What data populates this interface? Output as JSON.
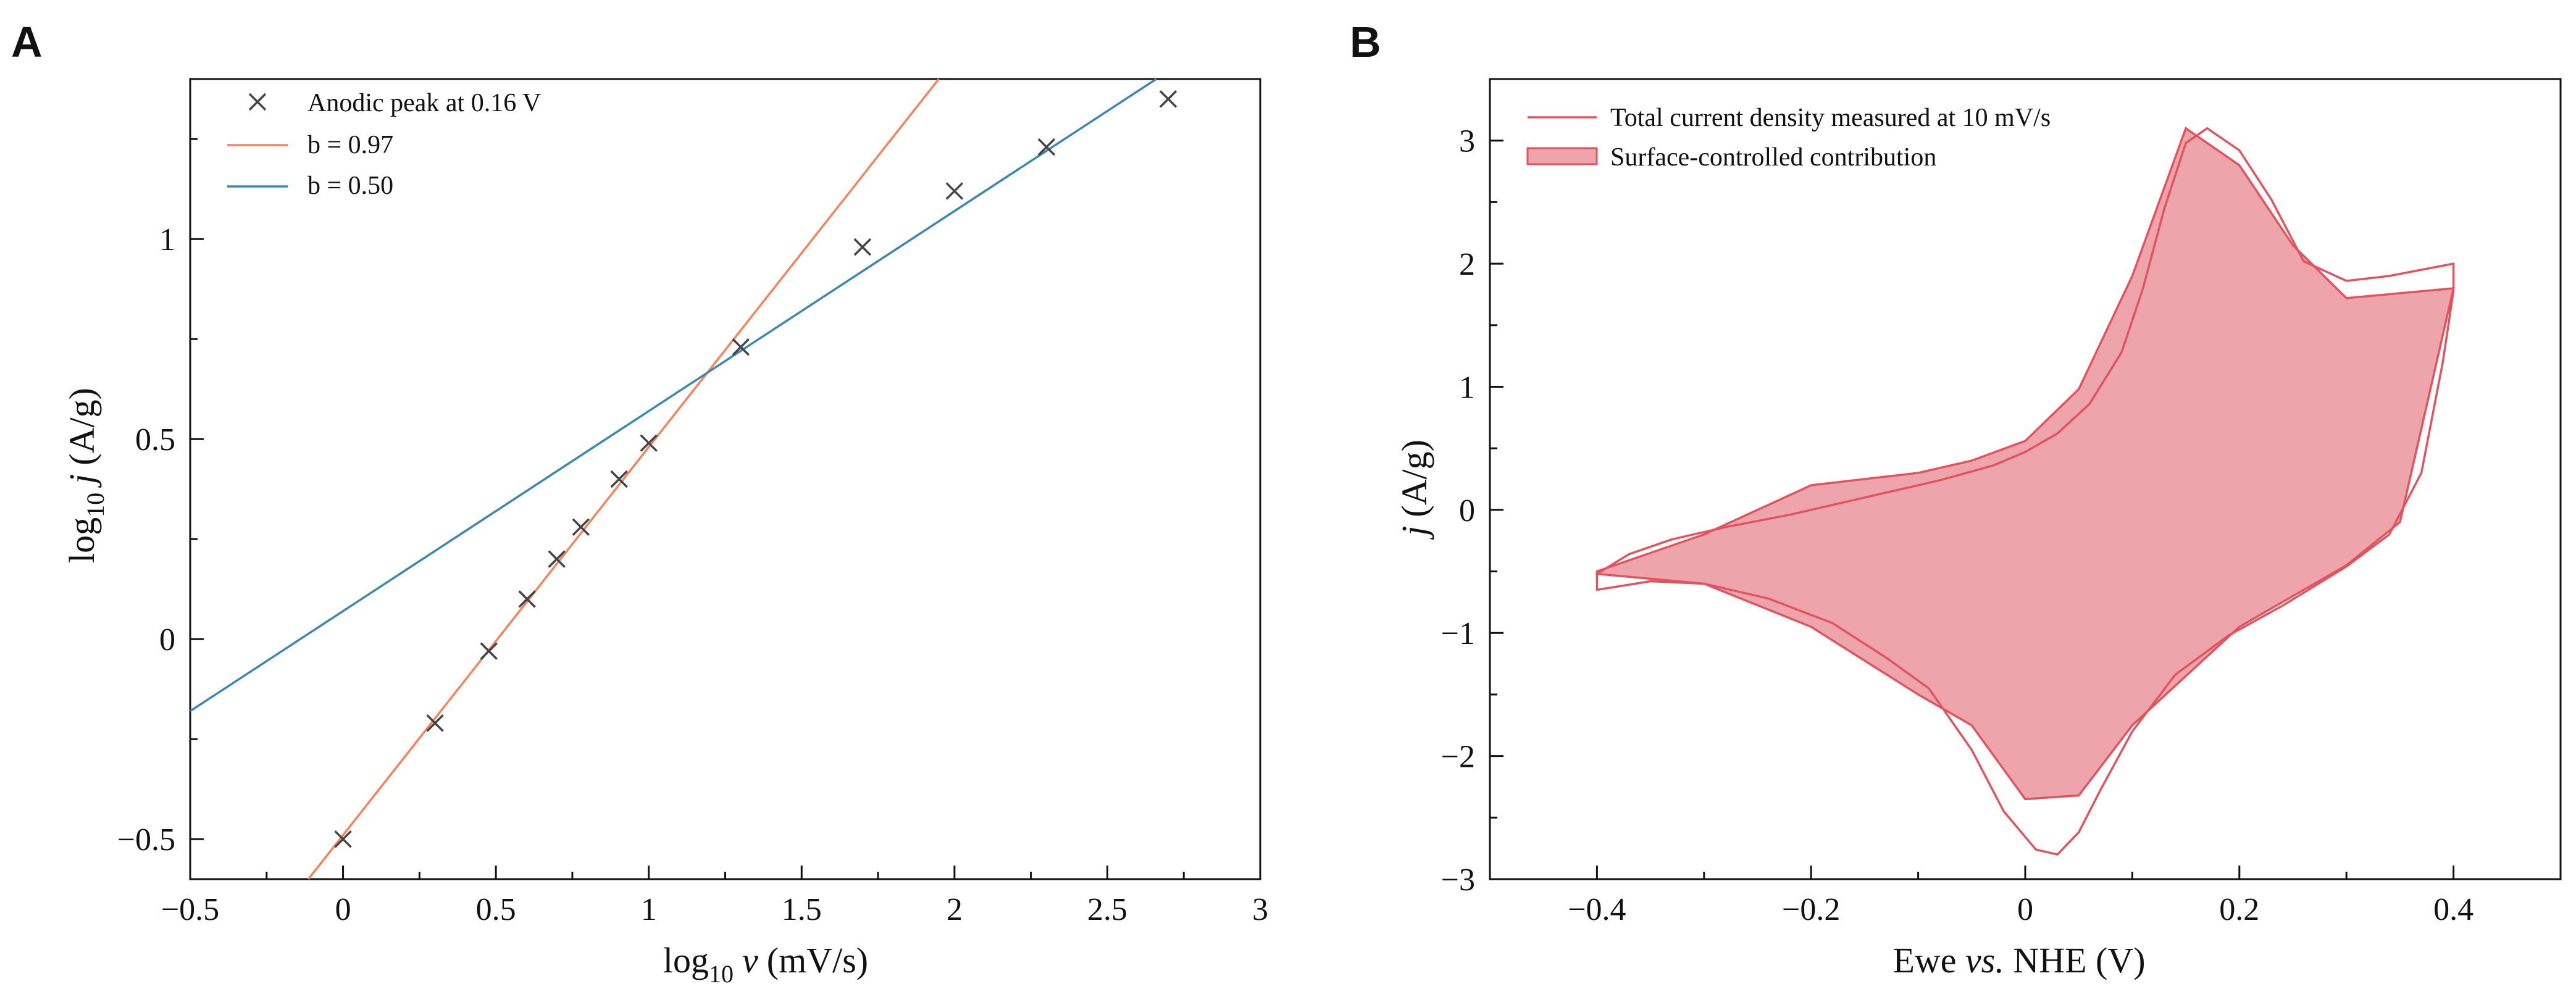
{
  "colors": {
    "fit_b097": "#f4855a",
    "fit_b050": "#3a87b3",
    "marker": "#444444",
    "cv_line": "#e0535f",
    "cv_fill": "#eda4ab",
    "axis": "#111111"
  },
  "chart_data": [
    {
      "panel": "A",
      "type": "scatter",
      "xlabel": {
        "prefix": "log",
        "sub": "10",
        "var": "v",
        "unit": "(mV/s)"
      },
      "ylabel": {
        "prefix": "log",
        "sub": "10",
        "var": "j",
        "unit": "(A/g)"
      },
      "xlim": [
        -0.5,
        3.0
      ],
      "ylim": [
        -0.6,
        1.4
      ],
      "xticks": [
        -0.5,
        0,
        0.5,
        1,
        1.5,
        2,
        2.5,
        3
      ],
      "xtick_labels": [
        "−0.5",
        "0",
        "0.5",
        "1",
        "1.5",
        "2",
        "2.5",
        "3"
      ],
      "yticks": [
        -0.5,
        0,
        0.5,
        1
      ],
      "ytick_labels": [
        "−0.5",
        "0",
        "0.5",
        "1"
      ],
      "xminor_step": 0.25,
      "yminor_step": 0.25,
      "grid": false,
      "legend_position": "top-left",
      "series": [
        {
          "name": "Anodic peak at 0.16 V",
          "kind": "marker-x",
          "points": [
            [
              0.0,
              -0.5
            ],
            [
              0.301,
              -0.21
            ],
            [
              0.477,
              -0.03
            ],
            [
              0.602,
              0.1
            ],
            [
              0.699,
              0.2
            ],
            [
              0.778,
              0.28
            ],
            [
              0.903,
              0.4
            ],
            [
              1.0,
              0.49
            ],
            [
              1.301,
              0.73
            ],
            [
              1.699,
              0.98
            ],
            [
              2.0,
              1.12
            ],
            [
              2.301,
              1.23
            ],
            [
              2.699,
              1.35
            ]
          ]
        },
        {
          "name": "b = 0.97",
          "kind": "line",
          "slope": 0.97,
          "intercept": -0.49,
          "x_range": [
            -0.5,
            3.0
          ]
        },
        {
          "name": "b = 0.50",
          "kind": "line",
          "slope": 0.5,
          "intercept": 0.07,
          "x_range": [
            -0.5,
            3.0
          ]
        }
      ]
    },
    {
      "panel": "B",
      "type": "area",
      "xlabel": {
        "pre": "Ewe ",
        "italic": "vs.",
        "post": " NHE (V)"
      },
      "ylabel": {
        "var": "j",
        "unit": "(A/g)"
      },
      "xlim": [
        -0.5,
        0.5
      ],
      "ylim": [
        -3,
        3.5
      ],
      "xticks": [
        -0.4,
        -0.2,
        0,
        0.2,
        0.4
      ],
      "xtick_labels": [
        "−0.4",
        "−0.2",
        "0",
        "0.2",
        "0.4"
      ],
      "yticks": [
        -3,
        -2,
        -1,
        0,
        1,
        2,
        3
      ],
      "ytick_labels": [
        "−3",
        "−2",
        "−1",
        "0",
        "1",
        "2",
        "3"
      ],
      "xminor_step": 0.1,
      "yminor_step": 0.5,
      "grid": false,
      "legend_position": "top-left",
      "series": [
        {
          "name": "Total current density measured at 10 mV/s",
          "kind": "line",
          "points": [
            [
              -0.4,
              -0.52
            ],
            [
              -0.37,
              -0.36
            ],
            [
              -0.33,
              -0.24
            ],
            [
              -0.28,
              -0.14
            ],
            [
              -0.22,
              -0.04
            ],
            [
              -0.15,
              0.1
            ],
            [
              -0.08,
              0.24
            ],
            [
              -0.03,
              0.36
            ],
            [
              0.0,
              0.47
            ],
            [
              0.03,
              0.62
            ],
            [
              0.06,
              0.86
            ],
            [
              0.09,
              1.28
            ],
            [
              0.11,
              1.8
            ],
            [
              0.13,
              2.45
            ],
            [
              0.15,
              2.98
            ],
            [
              0.17,
              3.1
            ],
            [
              0.2,
              2.92
            ],
            [
              0.23,
              2.52
            ],
            [
              0.26,
              2.02
            ],
            [
              0.3,
              1.86
            ],
            [
              0.34,
              1.9
            ],
            [
              0.37,
              1.95
            ],
            [
              0.4,
              2.0
            ],
            [
              0.4,
              1.78
            ],
            [
              0.39,
              1.2
            ],
            [
              0.37,
              0.3
            ],
            [
              0.34,
              -0.2
            ],
            [
              0.3,
              -0.46
            ],
            [
              0.24,
              -0.78
            ],
            [
              0.19,
              -1.02
            ],
            [
              0.14,
              -1.34
            ],
            [
              0.1,
              -1.8
            ],
            [
              0.07,
              -2.28
            ],
            [
              0.05,
              -2.62
            ],
            [
              0.03,
              -2.8
            ],
            [
              0.01,
              -2.76
            ],
            [
              -0.02,
              -2.45
            ],
            [
              -0.05,
              -1.95
            ],
            [
              -0.09,
              -1.45
            ],
            [
              -0.13,
              -1.2
            ],
            [
              -0.18,
              -0.92
            ],
            [
              -0.24,
              -0.72
            ],
            [
              -0.3,
              -0.6
            ],
            [
              -0.35,
              -0.58
            ],
            [
              -0.4,
              -0.65
            ]
          ]
        },
        {
          "name": "Surface-controlled contribution",
          "kind": "fill",
          "points": [
            [
              -0.4,
              -0.5
            ],
            [
              -0.3,
              -0.2
            ],
            [
              -0.2,
              0.2
            ],
            [
              -0.1,
              0.3
            ],
            [
              -0.05,
              0.4
            ],
            [
              0.0,
              0.56
            ],
            [
              0.05,
              0.98
            ],
            [
              0.1,
              1.9
            ],
            [
              0.15,
              3.1
            ],
            [
              0.2,
              2.8
            ],
            [
              0.25,
              2.15
            ],
            [
              0.3,
              1.72
            ],
            [
              0.4,
              1.8
            ],
            [
              0.35,
              -0.1
            ],
            [
              0.3,
              -0.45
            ],
            [
              0.2,
              -0.95
            ],
            [
              0.1,
              -1.75
            ],
            [
              0.05,
              -2.32
            ],
            [
              0.0,
              -2.35
            ],
            [
              -0.05,
              -1.75
            ],
            [
              -0.1,
              -1.5
            ],
            [
              -0.2,
              -0.95
            ],
            [
              -0.3,
              -0.6
            ],
            [
              -0.4,
              -0.52
            ]
          ]
        }
      ]
    }
  ]
}
